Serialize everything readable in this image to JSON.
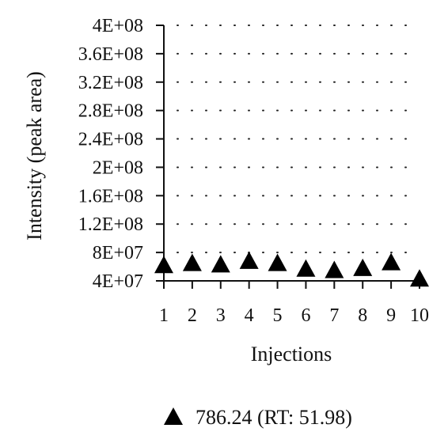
{
  "chart_data": {
    "type": "scatter",
    "xlabel": "Injections",
    "ylabel": "Intensity (peak area)",
    "x_ticks": [
      "1",
      "2",
      "3",
      "4",
      "5",
      "6",
      "7",
      "8",
      "9",
      "10"
    ],
    "y_ticks": [
      {
        "value": 40000000,
        "label": "4E+07"
      },
      {
        "value": 80000000,
        "label": "8E+07"
      },
      {
        "value": 120000000,
        "label": "1.2E+08"
      },
      {
        "value": 160000000,
        "label": "1.6E+08"
      },
      {
        "value": 200000000,
        "label": "2E+08"
      },
      {
        "value": 240000000,
        "label": "2.4E+08"
      },
      {
        "value": 280000000,
        "label": "2.8E+08"
      },
      {
        "value": 320000000,
        "label": "3.2E+08"
      },
      {
        "value": 360000000,
        "label": "3.6E+08"
      },
      {
        "value": 400000000,
        "label": "4E+08"
      }
    ],
    "xlim": [
      1,
      10
    ],
    "ylim": [
      40000000,
      400000000
    ],
    "grid": "horizontal dotted",
    "legend_position": "bottom",
    "series": [
      {
        "name": "786.24 (RT: 51.98)",
        "marker": "triangle",
        "color": "#000000",
        "x": [
          1,
          2,
          3,
          4,
          5,
          6,
          7,
          8,
          9,
          10
        ],
        "values": [
          62000000,
          65000000,
          63000000,
          68000000,
          65000000,
          57000000,
          55000000,
          58000000,
          66000000,
          43000000
        ]
      }
    ]
  }
}
